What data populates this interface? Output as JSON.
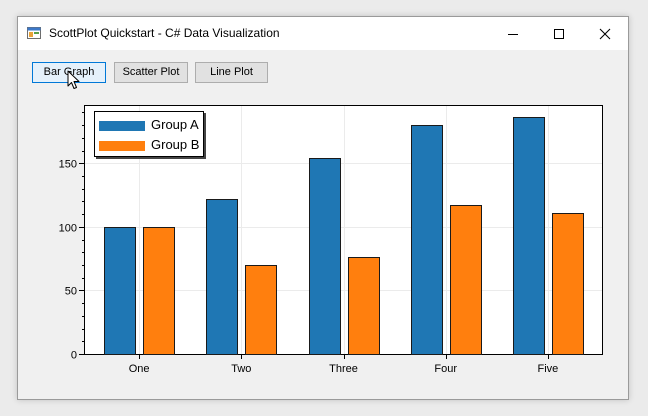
{
  "window": {
    "title": "ScottPlot Quickstart - C# Data Visualization",
    "controls": [
      "minimize",
      "maximize",
      "close"
    ]
  },
  "toolbar": {
    "bar_label": "Bar Graph",
    "scatter_label": "Scatter Plot",
    "line_label": "Line Plot"
  },
  "icons": {
    "app": "app-form-icon",
    "cursor": "mouse-pointer-icon"
  },
  "chart_data": {
    "type": "bar",
    "categories": [
      "One",
      "Two",
      "Three",
      "Four",
      "Five"
    ],
    "series": [
      {
        "name": "Group A",
        "color": "#1f77b4",
        "values": [
          100,
          122,
          154,
          180,
          186
        ]
      },
      {
        "name": "Group B",
        "color": "#ff7f0e",
        "values": [
          100,
          70,
          76,
          117,
          111
        ]
      }
    ],
    "yticks": [
      0,
      50,
      100,
      150
    ],
    "ylim": [
      0,
      195
    ],
    "grid": true,
    "legend_position": "top-left"
  }
}
